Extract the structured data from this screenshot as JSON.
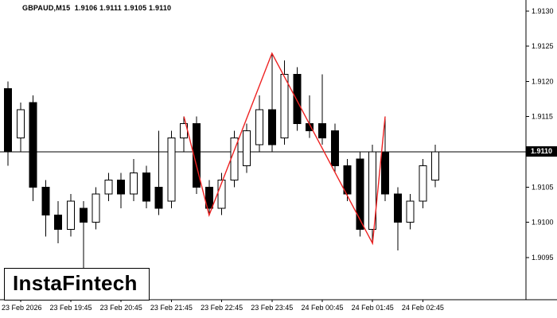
{
  "window": {
    "title": "GBPAUD,M15"
  },
  "header": {
    "text": "GBPAUD,M15  1.9106 1.9111 1.9105 1.9110",
    "symbol": "GBPAUD,M15",
    "open": "1.9106",
    "high": "1.9111",
    "low": "1.9105",
    "close": "1.9110"
  },
  "logo": {
    "text": "InstaFintech"
  },
  "price_tag": {
    "label": "1.9110"
  },
  "colors": {
    "background": "#ffffff",
    "bull_fill": "#ffffff",
    "bear_fill": "#000000",
    "candle_outline": "#000000",
    "zigzag": "#ee2222",
    "axis": "#000000",
    "price_tag_bg": "#000000",
    "price_tag_text": "#ffffff"
  },
  "chart_data": {
    "type": "candlestick",
    "symbol": "GBPAUD",
    "timeframe": "M15",
    "title": "GBPAUD,M15 1.9106 1.9111 1.9105 1.9110",
    "current_price": 1.911,
    "price_range": [
      1.9089,
      1.9131
    ],
    "y_ticks": [
      "1.9130",
      "1.9125",
      "1.9120",
      "1.9115",
      "1.9110",
      "1.9105",
      "1.9100",
      "1.9095"
    ],
    "x_labels": [
      "23 Feb 2026",
      "23 Feb 19:45",
      "23 Feb 20:45",
      "23 Feb 21:45",
      "23 Feb 22:45",
      "23 Feb 23:45",
      "24 Feb 00:45",
      "24 Feb 01:45",
      "24 Feb 02:45"
    ],
    "x_label_indices": [
      1,
      5,
      9,
      13,
      17,
      21,
      25,
      29,
      33
    ],
    "candle_format": "[open, high, low, close]",
    "candles": [
      [
        1.9119,
        1.912,
        1.9108,
        1.911
      ],
      [
        1.9112,
        1.9117,
        1.911,
        1.9116
      ],
      [
        1.9117,
        1.9118,
        1.9103,
        1.9105
      ],
      [
        1.9105,
        1.9106,
        1.9098,
        1.9101
      ],
      [
        1.9101,
        1.9103,
        1.9097,
        1.9099
      ],
      [
        1.9099,
        1.9104,
        1.9098,
        1.9103
      ],
      [
        1.9102,
        1.9103,
        1.9093,
        1.91
      ],
      [
        1.91,
        1.9105,
        1.9099,
        1.9104
      ],
      [
        1.9104,
        1.9107,
        1.9103,
        1.9106
      ],
      [
        1.9106,
        1.9107,
        1.9102,
        1.9104
      ],
      [
        1.9104,
        1.9109,
        1.9103,
        1.9107
      ],
      [
        1.9107,
        1.9108,
        1.9102,
        1.9103
      ],
      [
        1.9105,
        1.9113,
        1.9101,
        1.9102
      ],
      [
        1.9103,
        1.9113,
        1.9102,
        1.9112
      ],
      [
        1.9112,
        1.9115,
        1.911,
        1.9114
      ],
      [
        1.9114,
        1.9115,
        1.9104,
        1.9105
      ],
      [
        1.9105,
        1.9106,
        1.9101,
        1.9102
      ],
      [
        1.9102,
        1.9107,
        1.9101,
        1.9106
      ],
      [
        1.9106,
        1.9113,
        1.9105,
        1.9112
      ],
      [
        1.9108,
        1.9114,
        1.9107,
        1.9113
      ],
      [
        1.9111,
        1.9118,
        1.911,
        1.9116
      ],
      [
        1.9116,
        1.9124,
        1.911,
        1.9111
      ],
      [
        1.9112,
        1.9123,
        1.9111,
        1.9121
      ],
      [
        1.9121,
        1.9122,
        1.9113,
        1.9114
      ],
      [
        1.9114,
        1.9118,
        1.9112,
        1.9113
      ],
      [
        1.9114,
        1.9121,
        1.9111,
        1.9112
      ],
      [
        1.9113,
        1.9114,
        1.9107,
        1.9108
      ],
      [
        1.9108,
        1.9109,
        1.9103,
        1.9104
      ],
      [
        1.9109,
        1.911,
        1.9098,
        1.9099
      ],
      [
        1.9099,
        1.9111,
        1.9097,
        1.911
      ],
      [
        1.911,
        1.9115,
        1.9103,
        1.9104
      ],
      [
        1.9104,
        1.9105,
        1.9096,
        1.91
      ],
      [
        1.91,
        1.9104,
        1.9099,
        1.9103
      ],
      [
        1.9103,
        1.9109,
        1.9102,
        1.9108
      ],
      [
        1.9106,
        1.9111,
        1.9105,
        1.911
      ]
    ],
    "zigzag": [
      {
        "index": 14,
        "price": 1.9115
      },
      {
        "index": 16,
        "price": 1.9101
      },
      {
        "index": 21,
        "price": 1.9124
      },
      {
        "index": 29,
        "price": 1.9097
      },
      {
        "index": 30,
        "price": 1.9115
      }
    ]
  }
}
